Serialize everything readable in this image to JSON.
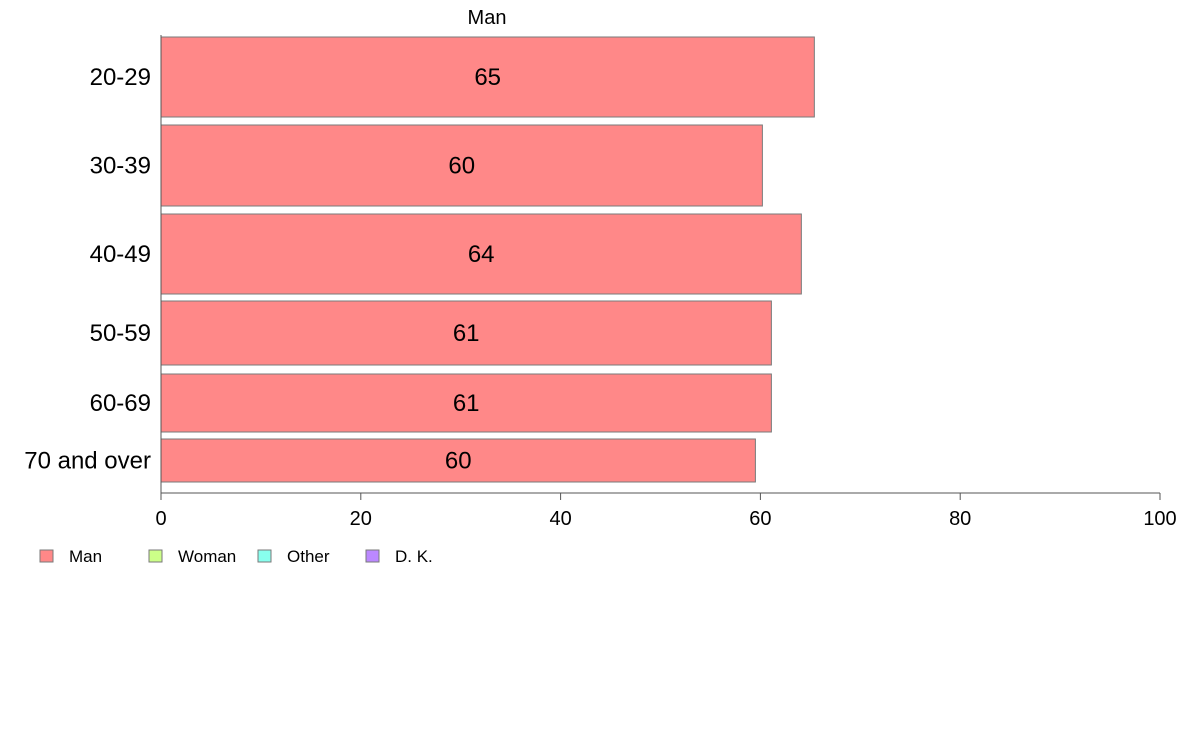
{
  "chart_data": {
    "type": "bar",
    "orientation": "horizontal",
    "title": "Man",
    "categories": [
      "20-29",
      "30-39",
      "40-49",
      "50-59",
      "60-69",
      "70 and over"
    ],
    "series": [
      {
        "name": "Man",
        "color": "#ff8888",
        "values": [
          65.4,
          60.2,
          64.1,
          61.1,
          61.1,
          59.5
        ],
        "labels": [
          "65",
          "60",
          "64",
          "61",
          "61",
          "60"
        ]
      }
    ],
    "xlim": [
      0,
      100
    ],
    "xticks": [
      "0",
      "20",
      "40",
      "60",
      "80",
      "100"
    ],
    "grid": false,
    "legend_position": "bottom-left",
    "legend": [
      {
        "label": "Man",
        "color": "#ff8888"
      },
      {
        "label": "Woman",
        "color": "#ccff88"
      },
      {
        "label": "Other",
        "color": "#88ffee"
      },
      {
        "label": "D. K.",
        "color": "#bb88ff"
      }
    ]
  }
}
